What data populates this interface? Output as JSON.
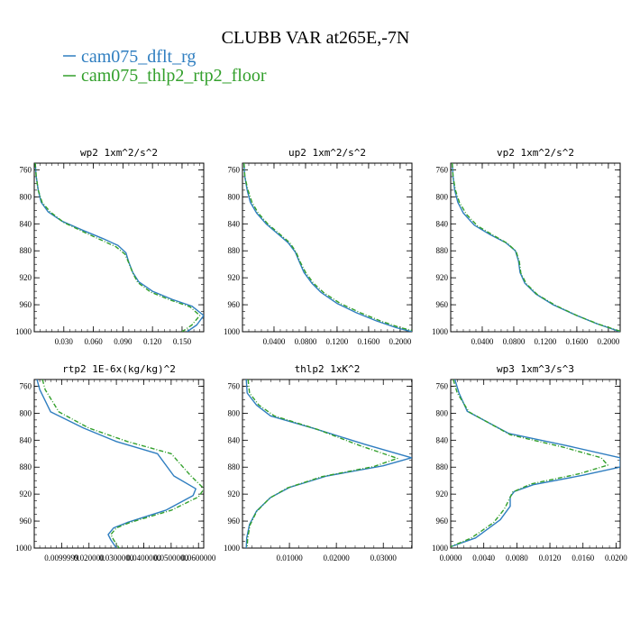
{
  "figure": {
    "title": "CLUBB VAR at265E,-7N",
    "legend": [
      {
        "name": "cam075_dflt_rg",
        "color": "#2f7ec0"
      },
      {
        "name": "cam075_thlp2_rtp2_floor",
        "color": "#33a02c"
      }
    ]
  },
  "chart_data": [
    {
      "type": "line",
      "title": "wp2  1xm^2/s^2",
      "ylim": [
        1000,
        750
      ],
      "yticks": [
        760,
        800,
        840,
        880,
        920,
        960,
        1000
      ],
      "xlim": [
        0.0,
        0.172
      ],
      "xticks": [
        0.03,
        0.06,
        0.09,
        0.12,
        0.15
      ],
      "xtick_labels": [
        "0.030",
        "0.060",
        "0.090",
        "0.120",
        "0.150"
      ],
      "series": [
        {
          "name": "cam075_dflt_rg",
          "color": "#2f7ec0",
          "dashed": false,
          "points": [
            [
              0.001,
              750
            ],
            [
              0.002,
              770
            ],
            [
              0.004,
              790
            ],
            [
              0.007,
              808
            ],
            [
              0.014,
              822
            ],
            [
              0.028,
              836
            ],
            [
              0.05,
              850
            ],
            [
              0.07,
              862
            ],
            [
              0.085,
              872
            ],
            [
              0.093,
              883
            ],
            [
              0.096,
              897
            ],
            [
              0.1,
              912
            ],
            [
              0.106,
              926
            ],
            [
              0.12,
              940
            ],
            [
              0.14,
              952
            ],
            [
              0.16,
              962
            ],
            [
              0.172,
              976
            ],
            [
              0.165,
              990
            ],
            [
              0.155,
              1000
            ]
          ]
        },
        {
          "name": "cam075_thlp2_rtp2_floor",
          "color": "#33a02c",
          "dashed": true,
          "points": [
            [
              0.001,
              750
            ],
            [
              0.002,
              770
            ],
            [
              0.004,
              790
            ],
            [
              0.008,
              808
            ],
            [
              0.016,
              822
            ],
            [
              0.03,
              838
            ],
            [
              0.05,
              852
            ],
            [
              0.068,
              864
            ],
            [
              0.083,
              874
            ],
            [
              0.092,
              885
            ],
            [
              0.096,
              898
            ],
            [
              0.1,
              913
            ],
            [
              0.105,
              927
            ],
            [
              0.118,
              941
            ],
            [
              0.138,
              953
            ],
            [
              0.158,
              963
            ],
            [
              0.168,
              976
            ],
            [
              0.16,
              990
            ],
            [
              0.15,
              1000
            ]
          ]
        }
      ]
    },
    {
      "type": "line",
      "title": "up2  1xm^2/s^2",
      "ylim": [
        1000,
        750
      ],
      "yticks": [
        760,
        800,
        840,
        880,
        920,
        960,
        1000
      ],
      "xlim": [
        0.0,
        0.215
      ],
      "xticks": [
        0.04,
        0.08,
        0.12,
        0.16,
        0.2
      ],
      "xtick_labels": [
        "0.0400",
        "0.0800",
        "0.1200",
        "0.1600",
        "0.2000"
      ],
      "series": [
        {
          "name": "cam075_dflt_rg",
          "color": "#2f7ec0",
          "dashed": false,
          "points": [
            [
              0.002,
              750
            ],
            [
              0.003,
              770
            ],
            [
              0.006,
              790
            ],
            [
              0.01,
              808
            ],
            [
              0.018,
              824
            ],
            [
              0.03,
              840
            ],
            [
              0.045,
              855
            ],
            [
              0.058,
              868
            ],
            [
              0.067,
              882
            ],
            [
              0.072,
              896
            ],
            [
              0.078,
              912
            ],
            [
              0.088,
              928
            ],
            [
              0.1,
              942
            ],
            [
              0.12,
              958
            ],
            [
              0.145,
              972
            ],
            [
              0.17,
              984
            ],
            [
              0.195,
              994
            ],
            [
              0.215,
              1000
            ]
          ]
        },
        {
          "name": "cam075_thlp2_rtp2_floor",
          "color": "#33a02c",
          "dashed": true,
          "points": [
            [
              0.002,
              750
            ],
            [
              0.003,
              770
            ],
            [
              0.007,
              790
            ],
            [
              0.012,
              808
            ],
            [
              0.02,
              824
            ],
            [
              0.032,
              840
            ],
            [
              0.047,
              855
            ],
            [
              0.06,
              868
            ],
            [
              0.068,
              882
            ],
            [
              0.073,
              896
            ],
            [
              0.08,
              912
            ],
            [
              0.09,
              928
            ],
            [
              0.103,
              942
            ],
            [
              0.124,
              958
            ],
            [
              0.15,
              972
            ],
            [
              0.175,
              984
            ],
            [
              0.2,
              994
            ],
            [
              0.215,
              998
            ]
          ]
        }
      ]
    },
    {
      "type": "line",
      "title": "vp2  1xm^2/s^2",
      "ylim": [
        1000,
        750
      ],
      "yticks": [
        760,
        800,
        840,
        880,
        920,
        960,
        1000
      ],
      "xlim": [
        0.0,
        0.215
      ],
      "xticks": [
        0.04,
        0.08,
        0.12,
        0.16,
        0.2
      ],
      "xtick_labels": [
        "0.0400",
        "0.0800",
        "0.1200",
        "0.1600",
        "0.2000"
      ],
      "series": [
        {
          "name": "cam075_dflt_rg",
          "color": "#2f7ec0",
          "dashed": false,
          "points": [
            [
              0.002,
              750
            ],
            [
              0.003,
              770
            ],
            [
              0.005,
              790
            ],
            [
              0.009,
              808
            ],
            [
              0.016,
              824
            ],
            [
              0.03,
              842
            ],
            [
              0.05,
              856
            ],
            [
              0.07,
              868
            ],
            [
              0.082,
              880
            ],
            [
              0.086,
              895
            ],
            [
              0.088,
              912
            ],
            [
              0.094,
              928
            ],
            [
              0.108,
              944
            ],
            [
              0.13,
              960
            ],
            [
              0.158,
              975
            ],
            [
              0.185,
              988
            ],
            [
              0.215,
              1000
            ]
          ]
        },
        {
          "name": "cam075_thlp2_rtp2_floor",
          "color": "#33a02c",
          "dashed": true,
          "points": [
            [
              0.002,
              750
            ],
            [
              0.003,
              770
            ],
            [
              0.006,
              790
            ],
            [
              0.011,
              808
            ],
            [
              0.02,
              826
            ],
            [
              0.034,
              843
            ],
            [
              0.054,
              857
            ],
            [
              0.072,
              869
            ],
            [
              0.083,
              881
            ],
            [
              0.087,
              896
            ],
            [
              0.089,
              913
            ],
            [
              0.096,
              929
            ],
            [
              0.11,
              945
            ],
            [
              0.133,
              961
            ],
            [
              0.16,
              976
            ],
            [
              0.188,
              989
            ],
            [
              0.215,
              999
            ]
          ]
        }
      ]
    },
    {
      "type": "line",
      "title": "rtp2  1E-6x(kg/kg)^2",
      "ylim": [
        1000,
        750
      ],
      "yticks": [
        760,
        800,
        840,
        880,
        920,
        960,
        1000
      ],
      "xlim": [
        0.0,
        0.0619
      ],
      "xticks": [
        0.0099999,
        0.02,
        0.03,
        0.04,
        0.05,
        0.06
      ],
      "xtick_labels": [
        "0.0099999",
        "0.020000",
        "0.0300000",
        "0.0400000",
        "0.0500000",
        "0.0600000"
      ],
      "series": [
        {
          "name": "cam075_dflt_rg",
          "color": "#2f7ec0",
          "dashed": false,
          "points": [
            [
              0.001,
              750
            ],
            [
              0.002,
              765
            ],
            [
              0.006,
              798
            ],
            [
              0.018,
              822
            ],
            [
              0.03,
              842
            ],
            [
              0.045,
              860
            ],
            [
              0.051,
              893
            ],
            [
              0.059,
              912
            ],
            [
              0.058,
              922
            ],
            [
              0.048,
              944
            ],
            [
              0.034,
              962
            ],
            [
              0.029,
              970
            ],
            [
              0.027,
              980
            ],
            [
              0.028,
              988
            ],
            [
              0.03,
              1000
            ]
          ]
        },
        {
          "name": "cam075_thlp2_rtp2_floor",
          "color": "#33a02c",
          "dashed": true,
          "points": [
            [
              0.003,
              750
            ],
            [
              0.004,
              765
            ],
            [
              0.009,
              798
            ],
            [
              0.02,
              822
            ],
            [
              0.034,
              842
            ],
            [
              0.05,
              860
            ],
            [
              0.057,
              892
            ],
            [
              0.062,
              912
            ],
            [
              0.06,
              924
            ],
            [
              0.05,
              944
            ],
            [
              0.035,
              962
            ],
            [
              0.03,
              970
            ],
            [
              0.028,
              980
            ],
            [
              0.029,
              988
            ],
            [
              0.031,
              1000
            ]
          ]
        }
      ]
    },
    {
      "type": "line",
      "title": "thlp2  1xK^2",
      "ylim": [
        1000,
        750
      ],
      "yticks": [
        760,
        800,
        840,
        880,
        920,
        960,
        1000
      ],
      "xlim": [
        0.0,
        0.0361
      ],
      "xticks": [
        0.01,
        0.02,
        0.03
      ],
      "xtick_labels": [
        "0.01000",
        "0.02000",
        "0.03000"
      ],
      "series": [
        {
          "name": "cam075_dflt_rg",
          "color": "#2f7ec0",
          "dashed": false,
          "points": [
            [
              0.0008,
              750
            ],
            [
              0.001,
              770
            ],
            [
              0.003,
              788
            ],
            [
              0.006,
              804
            ],
            [
              0.015,
              822
            ],
            [
              0.026,
              846
            ],
            [
              0.036,
              866
            ],
            [
              0.03,
              878
            ],
            [
              0.018,
              893
            ],
            [
              0.01,
              910
            ],
            [
              0.006,
              925
            ],
            [
              0.003,
              945
            ],
            [
              0.0015,
              965
            ],
            [
              0.0009,
              985
            ],
            [
              0.0008,
              1000
            ]
          ]
        },
        {
          "name": "cam075_thlp2_rtp2_floor",
          "color": "#33a02c",
          "dashed": true,
          "points": [
            [
              0.0012,
              750
            ],
            [
              0.0015,
              770
            ],
            [
              0.0035,
              788
            ],
            [
              0.0068,
              804
            ],
            [
              0.016,
              824
            ],
            [
              0.025,
              848
            ],
            [
              0.033,
              867
            ],
            [
              0.028,
              879
            ],
            [
              0.017,
              894
            ],
            [
              0.0095,
              911
            ],
            [
              0.0058,
              926
            ],
            [
              0.003,
              946
            ],
            [
              0.0016,
              966
            ],
            [
              0.0011,
              986
            ],
            [
              0.001,
              1000
            ]
          ]
        }
      ]
    },
    {
      "type": "line",
      "title": "wp3  1xm^3/s^3",
      "ylim": [
        1000,
        750
      ],
      "yticks": [
        760,
        800,
        840,
        880,
        920,
        960,
        1000
      ],
      "xlim": [
        0.0,
        0.0205
      ],
      "xticks": [
        0.0,
        0.004,
        0.008,
        0.012,
        0.016,
        0.02
      ],
      "xtick_labels": [
        "0.0000",
        "0.0040",
        "0.0080",
        "0.0120",
        "0.0160",
        "0.0200"
      ],
      "series": [
        {
          "name": "cam075_dflt_rg",
          "color": "#2f7ec0",
          "dashed": false,
          "points": [
            [
              0.0005,
              750
            ],
            [
              0.001,
              770
            ],
            [
              0.002,
              797
            ],
            [
              0.007,
              830
            ],
            [
              0.014,
              848
            ],
            [
              0.0205,
              866
            ],
            [
              0.0205,
              880
            ],
            [
              0.016,
              892
            ],
            [
              0.01,
              906
            ],
            [
              0.0077,
              916
            ],
            [
              0.0072,
              924
            ],
            [
              0.0072,
              938
            ],
            [
              0.006,
              958
            ],
            [
              0.003,
              985
            ],
            [
              0.0,
              998
            ]
          ]
        },
        {
          "name": "cam075_thlp2_rtp2_floor",
          "color": "#33a02c",
          "dashed": true,
          "points": [
            [
              0.0003,
              750
            ],
            [
              0.0008,
              770
            ],
            [
              0.0022,
              798
            ],
            [
              0.0072,
              832
            ],
            [
              0.0135,
              850
            ],
            [
              0.0182,
              866
            ],
            [
              0.019,
              877
            ],
            [
              0.0155,
              890
            ],
            [
              0.0097,
              905
            ],
            [
              0.0075,
              917
            ],
            [
              0.0071,
              927
            ],
            [
              0.0065,
              942
            ],
            [
              0.0052,
              962
            ],
            [
              0.0025,
              985
            ],
            [
              0.0,
              998
            ]
          ]
        }
      ]
    }
  ]
}
